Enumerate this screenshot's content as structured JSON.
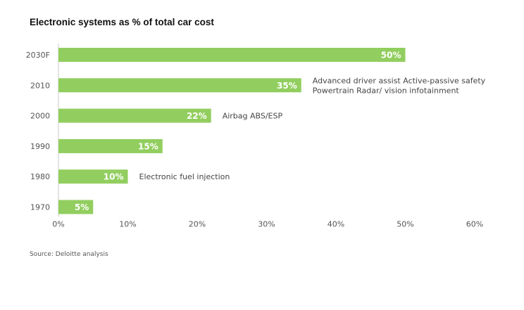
{
  "chart_data": {
    "type": "bar",
    "orientation": "horizontal",
    "title": "Electronic systems as % of total car cost",
    "source": "Source: Deloitte analysis",
    "categories": [
      "2030F",
      "2010",
      "2000",
      "1990",
      "1980",
      "1970"
    ],
    "values": [
      50,
      35,
      22,
      15,
      10,
      5
    ],
    "value_labels": [
      "50%",
      "35%",
      "22%",
      "15%",
      "10%",
      "5%"
    ],
    "annotations": [
      {
        "category": "2010",
        "lines": [
          "Advanced driver assist Active-passive safety",
          "Powertrain Radar/ vision infotainment"
        ]
      },
      {
        "category": "2000",
        "lines": [
          "Airbag ABS/ESP"
        ]
      },
      {
        "category": "1980",
        "lines": [
          "Electronic fuel injection"
        ]
      }
    ],
    "x_ticks": [
      "0%",
      "10%",
      "20%",
      "30%",
      "40%",
      "50%",
      "60%"
    ],
    "xlim": [
      0,
      60
    ],
    "xlabel": "",
    "ylabel": "",
    "grid": false,
    "legend": "none",
    "colors": {
      "bar": "#92ce5f",
      "bar_label": "#ffffff",
      "tick_label": "#555555",
      "annotation": "#444444",
      "axis": "#c8c8c8"
    }
  }
}
